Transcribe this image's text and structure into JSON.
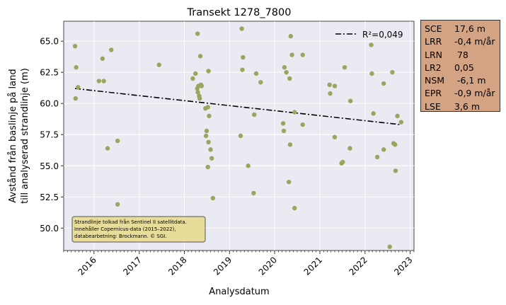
{
  "chart_data": {
    "type": "scatter",
    "title": "Transekt 1278_7800",
    "xlabel": "Analysdatum",
    "ylabel_lines": [
      "Avstånd från baslinje på land",
      "till analyserad strandlinje (m)"
    ],
    "x_ticks": [
      "2016",
      "2017",
      "2018",
      "2019",
      "2020",
      "2021",
      "2022",
      "2023"
    ],
    "y_ticks": [
      "50.0",
      "52.5",
      "55.0",
      "57.5",
      "60.0",
      "62.5",
      "65.0"
    ],
    "xlim": [
      "2015-05-01",
      "2023-02-01"
    ],
    "ylim": [
      48.2,
      66.6
    ],
    "grid": true,
    "point_color": "#9aa55e",
    "points": [
      {
        "x": "2015-08-01",
        "y": 64.6
      },
      {
        "x": "2015-08-10",
        "y": 62.9
      },
      {
        "x": "2015-08-05",
        "y": 60.4
      },
      {
        "x": "2015-08-25",
        "y": 61.3
      },
      {
        "x": "2016-02-10",
        "y": 61.8
      },
      {
        "x": "2016-03-10",
        "y": 63.6
      },
      {
        "x": "2016-03-20",
        "y": 61.8
      },
      {
        "x": "2016-04-20",
        "y": 56.4
      },
      {
        "x": "2016-05-20",
        "y": 64.3
      },
      {
        "x": "2016-07-10",
        "y": 51.9
      },
      {
        "x": "2016-07-10",
        "y": 57.0
      },
      {
        "x": "2017-06-10",
        "y": 63.1
      },
      {
        "x": "2018-03-10",
        "y": 62.0
      },
      {
        "x": "2018-04-01",
        "y": 62.4
      },
      {
        "x": "2018-04-15",
        "y": 61.2
      },
      {
        "x": "2018-04-20",
        "y": 60.9
      },
      {
        "x": "2018-04-25",
        "y": 61.4
      },
      {
        "x": "2018-05-01",
        "y": 60.6
      },
      {
        "x": "2018-05-05",
        "y": 60.4
      },
      {
        "x": "2018-05-10",
        "y": 63.8
      },
      {
        "x": "2018-05-15",
        "y": 61.5
      },
      {
        "x": "2018-04-18",
        "y": 65.6
      },
      {
        "x": "2018-05-20",
        "y": 61.4
      },
      {
        "x": "2018-06-20",
        "y": 59.6
      },
      {
        "x": "2018-07-10",
        "y": 59.7
      },
      {
        "x": "2018-07-20",
        "y": 59.0
      },
      {
        "x": "2018-07-15",
        "y": 62.6
      },
      {
        "x": "2018-06-25",
        "y": 57.4
      },
      {
        "x": "2018-06-30",
        "y": 57.8
      },
      {
        "x": "2018-07-15",
        "y": 56.9
      },
      {
        "x": "2018-08-01",
        "y": 56.3
      },
      {
        "x": "2018-08-10",
        "y": 55.6
      },
      {
        "x": "2018-07-10",
        "y": 54.9
      },
      {
        "x": "2018-08-20",
        "y": 52.4
      },
      {
        "x": "2019-04-01",
        "y": 57.4
      },
      {
        "x": "2019-04-10",
        "y": 66.0
      },
      {
        "x": "2019-04-20",
        "y": 63.7
      },
      {
        "x": "2019-04-15",
        "y": 62.7
      },
      {
        "x": "2019-06-01",
        "y": 55.0
      },
      {
        "x": "2019-07-20",
        "y": 59.1
      },
      {
        "x": "2019-08-05",
        "y": 62.4
      },
      {
        "x": "2019-09-10",
        "y": 61.7
      },
      {
        "x": "2019-07-15",
        "y": 52.8
      },
      {
        "x": "2020-03-10",
        "y": 58.4
      },
      {
        "x": "2020-03-15",
        "y": 57.8
      },
      {
        "x": "2020-03-20",
        "y": 62.9
      },
      {
        "x": "2020-04-05",
        "y": 62.5
      },
      {
        "x": "2020-05-10",
        "y": 65.4
      },
      {
        "x": "2020-05-20",
        "y": 63.9
      },
      {
        "x": "2020-05-01",
        "y": 62.0
      },
      {
        "x": "2020-06-10",
        "y": 59.3
      },
      {
        "x": "2020-04-25",
        "y": 53.7
      },
      {
        "x": "2020-05-05",
        "y": 56.7
      },
      {
        "x": "2020-06-10",
        "y": 51.6
      },
      {
        "x": "2020-08-15",
        "y": 63.9
      },
      {
        "x": "2020-08-15",
        "y": 58.3
      },
      {
        "x": "2021-03-20",
        "y": 61.5
      },
      {
        "x": "2021-03-25",
        "y": 60.8
      },
      {
        "x": "2021-05-01",
        "y": 61.4
      },
      {
        "x": "2021-05-01",
        "y": 57.3
      },
      {
        "x": "2021-06-25",
        "y": 55.2
      },
      {
        "x": "2021-07-05",
        "y": 55.3
      },
      {
        "x": "2021-07-20",
        "y": 62.9
      },
      {
        "x": "2021-09-05",
        "y": 60.2
      },
      {
        "x": "2021-09-01",
        "y": 56.4
      },
      {
        "x": "2022-02-20",
        "y": 64.7
      },
      {
        "x": "2022-02-25",
        "y": 62.4
      },
      {
        "x": "2022-03-10",
        "y": 59.2
      },
      {
        "x": "2022-04-10",
        "y": 55.7
      },
      {
        "x": "2022-06-01",
        "y": 61.6
      },
      {
        "x": "2022-06-01",
        "y": 56.3
      },
      {
        "x": "2022-07-20",
        "y": 48.5
      },
      {
        "x": "2022-08-10",
        "y": 62.5
      },
      {
        "x": "2022-08-20",
        "y": 56.8
      },
      {
        "x": "2022-09-01",
        "y": 56.7
      },
      {
        "x": "2022-09-05",
        "y": 54.6
      },
      {
        "x": "2022-09-20",
        "y": 59.0
      },
      {
        "x": "2022-10-20",
        "y": 58.5
      }
    ],
    "trend": {
      "label": "R²=0,049",
      "style": "dash-dot",
      "color": "#000000",
      "start": {
        "x": "2015-08-01",
        "y": 61.2
      },
      "end": {
        "x": "2022-10-20",
        "y": 58.3
      }
    },
    "legend_position": "top-right",
    "annotation": [
      "Strandlinje tolkad från Sentinel II satellitdata.",
      "Innehåller Copernicus-data (2015–2022),",
      "databearbetning: Brockmann. © SGI."
    ],
    "annotation_position": "bottom-left",
    "annotation_color": "#e8dc9a"
  },
  "stats": [
    {
      "key": "SCE",
      "value": "17,6 m"
    },
    {
      "key": "LRR",
      "value": "-0,4 m/år"
    },
    {
      "key": "LRN",
      "value": " 78"
    },
    {
      "key": "LR2",
      "value": "0,05"
    },
    {
      "key": "NSM",
      "value": " -6,1 m"
    },
    {
      "key": "EPR",
      "value": "-0,9 m/år"
    },
    {
      "key": "LSE",
      "value": "3,6 m"
    }
  ],
  "stats_color": "#d4a383"
}
